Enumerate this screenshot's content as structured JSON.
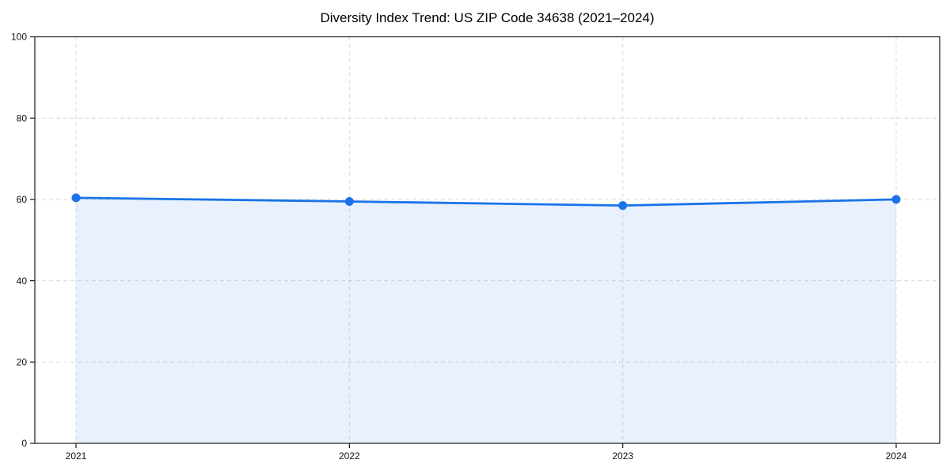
{
  "chart_data": {
    "type": "area",
    "title": "Diversity Index Trend: US ZIP Code 34638 (2021–2024)",
    "categories": [
      "2021",
      "2022",
      "2023",
      "2024"
    ],
    "values": [
      60.4,
      59.5,
      58.5,
      60.0
    ],
    "xlabel": "",
    "ylabel": "",
    "ylim": [
      0,
      100
    ],
    "y_ticks": [
      0,
      20,
      40,
      60,
      80,
      100
    ],
    "grid": "dashed-both-axes",
    "legend_position": "none",
    "marker": "circle",
    "colors": {
      "line": "#1a73e8",
      "marker": "#1a73e8",
      "fill": "rgba(26,115,232,0.10)",
      "grid": "#d9d9d9",
      "axis": "#1a1a1a",
      "title_text": "#000000",
      "background": "#ffffff"
    }
  }
}
